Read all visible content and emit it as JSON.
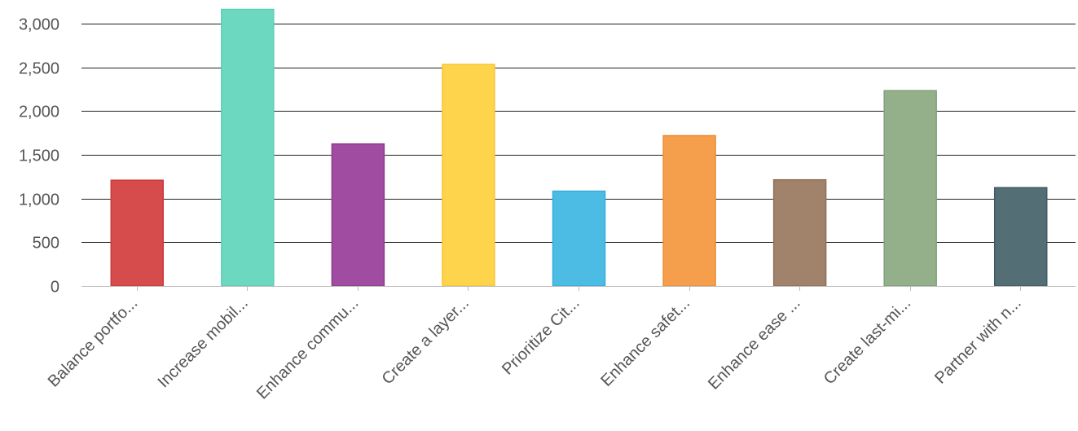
{
  "chart_data": {
    "type": "bar",
    "categories": [
      "Balance portfo...",
      "Increase mobil...",
      "Enhance commu...",
      "Create a layer...",
      "Prioritize Cit...",
      "Enhance safet...",
      "Enhance ease ...",
      "Create last-mi...",
      "Partner with n..."
    ],
    "values": [
      1210,
      3165,
      1625,
      2535,
      1085,
      1720,
      1215,
      2235,
      1125
    ],
    "colors": [
      "#D64B4B",
      "#6CD8C0",
      "#A04CA0",
      "#FDD44B",
      "#4DBCE4",
      "#F59E4C",
      "#A1826A",
      "#94B08A",
      "#546E75"
    ],
    "borders": [
      "#CC3A3A",
      "#5ACFB5",
      "#8E3C8E",
      "#F7C634",
      "#36ACDA",
      "#EE8C34",
      "#8F705A",
      "#82A078",
      "#3F5A62"
    ],
    "y_ticks": [
      "0",
      "500",
      "1,000",
      "1,500",
      "2,000",
      "2,500",
      "3,000"
    ],
    "ylim": [
      0,
      3150
    ],
    "grid": true
  }
}
